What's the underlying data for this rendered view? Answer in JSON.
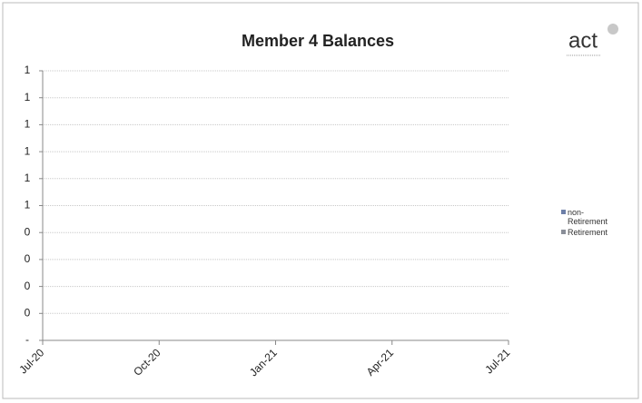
{
  "chart_data": {
    "type": "line",
    "title": "Member 4 Balances",
    "logo": "act",
    "categories": [
      "Jul-20",
      "Oct-20",
      "Jan-21",
      "Apr-21",
      "Jul-21"
    ],
    "series": [
      {
        "name": "non-Retirement",
        "color": "#6d7fa8",
        "values": [
          null,
          null,
          null,
          null,
          null
        ]
      },
      {
        "name": "Retirement",
        "color": "#8a8f99",
        "values": [
          null,
          null,
          null,
          null,
          null
        ]
      }
    ],
    "ylim": [
      0,
      1
    ],
    "yticks": [
      {
        "value": 0,
        "label": "-"
      },
      {
        "value": 0.1,
        "label": "0"
      },
      {
        "value": 0.2,
        "label": "0"
      },
      {
        "value": 0.3,
        "label": "0"
      },
      {
        "value": 0.4,
        "label": "0"
      },
      {
        "value": 0.5,
        "label": "1"
      },
      {
        "value": 0.6,
        "label": "1"
      },
      {
        "value": 0.7,
        "label": "1"
      },
      {
        "value": 0.8,
        "label": "1"
      },
      {
        "value": 0.9,
        "label": "1"
      },
      1
    ],
    "grid": true,
    "legend": "right"
  }
}
